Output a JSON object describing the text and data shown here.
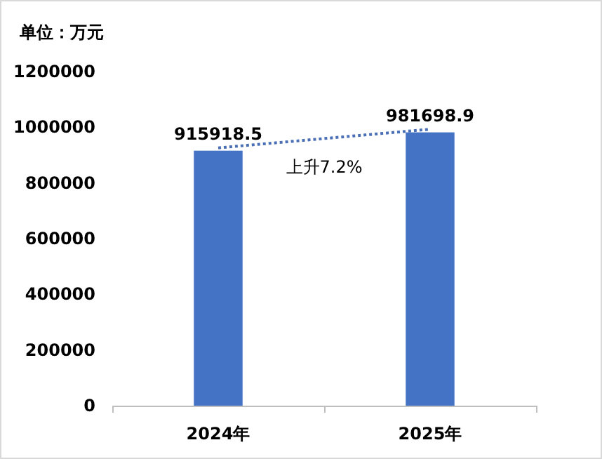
{
  "chart_data": {
    "type": "bar",
    "ylabel": "单位：万元",
    "categories": [
      "2024年",
      "2025年"
    ],
    "series": [
      {
        "color": "#4472c4",
        "values": [
          915918.5,
          981698.9
        ],
        "value_labels": [
          "915918.5",
          "981698.9"
        ]
      },
      {
        "type": "line",
        "color": "#4a6fb5",
        "values": [
          926000,
          993000
        ],
        "line_style": "dotted",
        "marker": "none"
      }
    ],
    "ylim": [
      0,
      1200000
    ],
    "yticks": [
      0,
      200000,
      400000,
      600000,
      800000,
      1000000,
      1200000
    ],
    "annotations": [
      "上升7.2%"
    ]
  }
}
